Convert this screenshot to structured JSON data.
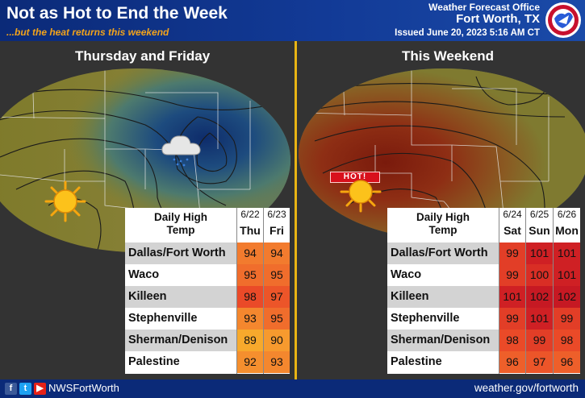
{
  "header": {
    "title": "Not as Hot to End the Week",
    "subtitle": "...but the heat returns this weekend",
    "office_line1": "Weather Forecast Office",
    "office_line2": "Fort Worth, TX",
    "issued": "Issued June 20, 2023 5:16 AM CT"
  },
  "left_panel": {
    "title": "Thursday and Friday",
    "table": {
      "label_line1": "Daily High",
      "label_line2": "Temp",
      "columns": [
        {
          "date": "6/22",
          "day": "Thu"
        },
        {
          "date": "6/23",
          "day": "Fri"
        }
      ],
      "rows": [
        {
          "name": "Dallas/Fort Worth",
          "values": [
            "94",
            "94"
          ]
        },
        {
          "name": "Waco",
          "values": [
            "95",
            "95"
          ]
        },
        {
          "name": "Killeen",
          "values": [
            "98",
            "97"
          ]
        },
        {
          "name": "Stephenville",
          "values": [
            "93",
            "95"
          ]
        },
        {
          "name": "Sherman/Denison",
          "values": [
            "89",
            "90"
          ]
        },
        {
          "name": "Palestine",
          "values": [
            "92",
            "93"
          ]
        }
      ]
    }
  },
  "right_panel": {
    "title": "This Weekend",
    "hot_label": "HOT!",
    "table": {
      "label_line1": "Daily High",
      "label_line2": "Temp",
      "columns": [
        {
          "date": "6/24",
          "day": "Sat"
        },
        {
          "date": "6/25",
          "day": "Sun"
        },
        {
          "date": "6/26",
          "day": "Mon"
        }
      ],
      "rows": [
        {
          "name": "Dallas/Fort Worth",
          "values": [
            "99",
            "101",
            "101"
          ]
        },
        {
          "name": "Waco",
          "values": [
            "99",
            "100",
            "101"
          ]
        },
        {
          "name": "Killeen",
          "values": [
            "101",
            "102",
            "102"
          ]
        },
        {
          "name": "Stephenville",
          "values": [
            "99",
            "101",
            "99"
          ]
        },
        {
          "name": "Sherman/Denison",
          "values": [
            "98",
            "99",
            "98"
          ]
        },
        {
          "name": "Palestine",
          "values": [
            "96",
            "97",
            "96"
          ]
        }
      ]
    }
  },
  "temp_colors": {
    "89": "#f7a92c",
    "90": "#f79a2e",
    "92": "#f58f2e",
    "93": "#f4872e",
    "94": "#f27b2e",
    "95": "#f06d2c",
    "96": "#ee5f2a",
    "97": "#ec5529",
    "98": "#ea4a28",
    "99": "#e23e27",
    "100": "#d92e25",
    "101": "#cf2024",
    "102": "#c61923"
  },
  "footer": {
    "handle": "NWSFortWorth",
    "website": "weather.gov/fortworth",
    "social_icons": [
      "facebook-icon",
      "twitter-icon",
      "youtube-icon"
    ]
  }
}
